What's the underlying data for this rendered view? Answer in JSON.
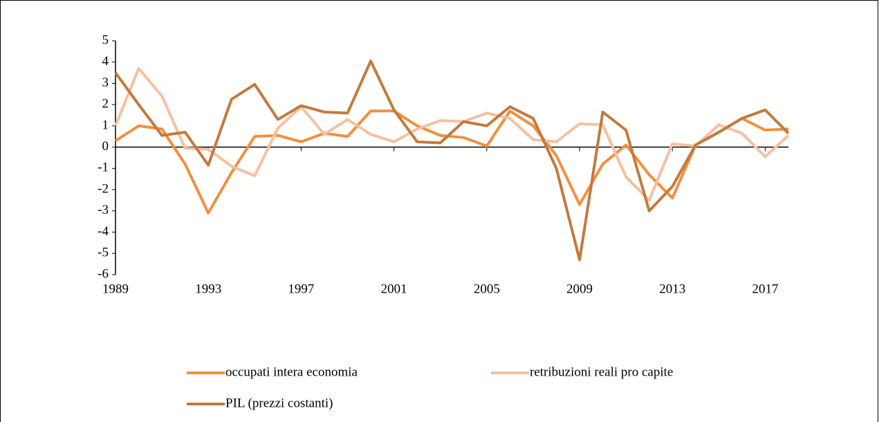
{
  "chart_data": {
    "type": "line",
    "x": [
      1989,
      1990,
      1991,
      1992,
      1993,
      1994,
      1995,
      1996,
      1997,
      1998,
      1999,
      2000,
      2001,
      2002,
      2003,
      2004,
      2005,
      2006,
      2007,
      2008,
      2009,
      2010,
      2011,
      2012,
      2013,
      2014,
      2015,
      2016,
      2017,
      2018
    ],
    "xlim": [
      1989,
      2018
    ],
    "xticks": [
      1989,
      1993,
      1997,
      2001,
      2005,
      2009,
      2013,
      2017
    ],
    "ylim": [
      -6,
      5
    ],
    "yticks": [
      -6,
      -5,
      -4,
      -3,
      -2,
      -1,
      0,
      1,
      2,
      3,
      4,
      5
    ],
    "series": [
      {
        "name": "occupati intera economia",
        "color": "#f28f3f",
        "values": [
          0.3,
          1.0,
          0.85,
          -0.8,
          -3.1,
          -1.2,
          0.5,
          0.55,
          0.25,
          0.65,
          0.5,
          1.7,
          1.7,
          1.0,
          0.55,
          0.45,
          0.05,
          1.7,
          1.0,
          -0.4,
          -2.7,
          -0.8,
          0.1,
          -1.3,
          -2.4,
          0.1,
          0.7,
          1.35,
          0.8,
          0.85
        ]
      },
      {
        "name": "retribuzioni reali pro capite",
        "color": "#f6c0a2",
        "values": [
          1.0,
          3.7,
          2.4,
          -0.05,
          -0.1,
          -0.9,
          -1.35,
          0.9,
          1.9,
          0.6,
          1.3,
          0.6,
          0.25,
          0.85,
          1.25,
          1.2,
          1.6,
          1.35,
          0.35,
          0.25,
          1.1,
          1.05,
          -1.4,
          -2.5,
          0.15,
          0.05,
          1.05,
          0.65,
          -0.45,
          0.55
        ]
      },
      {
        "name": "PIL (prezzi costanti)",
        "color": "#c27a3c",
        "values": [
          3.5,
          2.0,
          0.55,
          0.7,
          -0.85,
          2.25,
          2.95,
          1.3,
          1.95,
          1.65,
          1.6,
          4.05,
          1.75,
          0.25,
          0.2,
          1.2,
          1.0,
          1.9,
          1.35,
          -1.0,
          -5.3,
          1.65,
          0.8,
          -3.0,
          -1.85,
          0.1,
          0.7,
          1.35,
          1.75,
          0.65
        ]
      }
    ]
  }
}
